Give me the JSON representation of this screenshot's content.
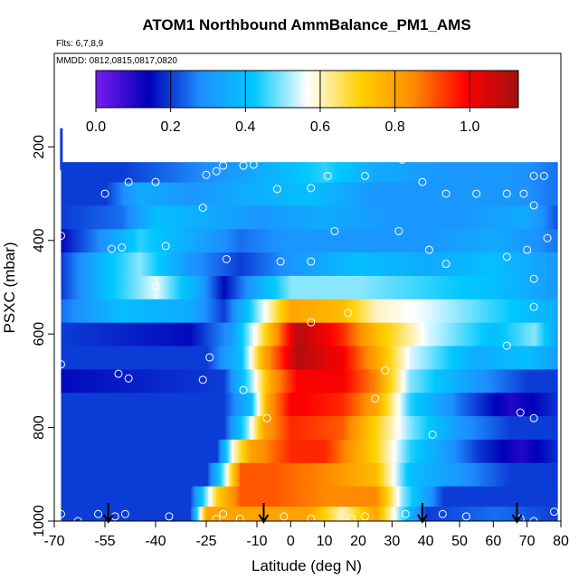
{
  "chart_data": {
    "type": "heatmap",
    "title": "ATOM1 Northbound AmmBalance_PM1_AMS",
    "flights_note": "Flts: 6,7,8,9",
    "dates_note": "MMDD: 0812,0815,0817,0820",
    "xlabel": "Latitude (deg N)",
    "ylabel": "PSXC (mbar)",
    "xlim": [
      -70,
      80
    ],
    "ylim": [
      1000,
      0
    ],
    "x_ticks": [
      -70,
      -55,
      -40,
      -25,
      -10,
      0,
      10,
      20,
      30,
      40,
      50,
      60,
      70,
      80
    ],
    "x_tick_labels": [
      "-70",
      "-55",
      "-40",
      "-25",
      "-10",
      "0",
      "10",
      "20",
      "30",
      "40",
      "50",
      "60",
      "70",
      "80"
    ],
    "y_ticks": [
      200,
      400,
      600,
      800,
      1000
    ],
    "y_tick_labels": [
      "200",
      "400",
      "600",
      "800",
      "1000"
    ],
    "colorbar": {
      "min": 0.0,
      "max": 1.13,
      "ticks": [
        0.0,
        0.2,
        0.4,
        0.6,
        0.8,
        1.0
      ],
      "tick_labels": [
        "0.0",
        "0.2",
        "0.4",
        "0.6",
        "0.8",
        "1.0"
      ],
      "colors": [
        "#7a1cf0",
        "#0000b8",
        "#1e90ff",
        "#00c8ff",
        "#ffffff",
        "#ffd000",
        "#ff8c00",
        "#ff0000",
        "#a01010"
      ]
    },
    "pressure_levels": [
      987,
      950,
      900,
      850,
      800,
      750,
      700,
      650,
      600,
      550,
      500,
      450,
      400,
      350,
      300,
      250
    ],
    "cells": [
      {
        "p": 987,
        "segments": [
          [
            -68,
            0.2
          ],
          [
            -30,
            0.2
          ],
          [
            -25,
            0.8
          ],
          [
            -10,
            0.8
          ],
          [
            5,
            0.8
          ],
          [
            15,
            0.6
          ],
          [
            25,
            0.8
          ],
          [
            32,
            0.5
          ],
          [
            40,
            0.2
          ],
          [
            60,
            0.25
          ],
          [
            80,
            0.2
          ]
        ]
      },
      {
        "p": 950,
        "segments": [
          [
            -68,
            0.2
          ],
          [
            -30,
            0.2
          ],
          [
            -22,
            0.7
          ],
          [
            -15,
            0.9
          ],
          [
            -5,
            0.9
          ],
          [
            10,
            0.85
          ],
          [
            25,
            0.85
          ],
          [
            33,
            0.5
          ],
          [
            45,
            0.2
          ],
          [
            80,
            0.2
          ]
        ]
      },
      {
        "p": 900,
        "segments": [
          [
            -68,
            0.2
          ],
          [
            -25,
            0.2
          ],
          [
            -20,
            0.5
          ],
          [
            -15,
            0.9
          ],
          [
            -5,
            0.9
          ],
          [
            10,
            0.85
          ],
          [
            25,
            0.75
          ],
          [
            35,
            0.4
          ],
          [
            50,
            0.3
          ],
          [
            65,
            0.2
          ],
          [
            80,
            0.2
          ]
        ]
      },
      {
        "p": 850,
        "segments": [
          [
            -68,
            0.2
          ],
          [
            -22,
            0.2
          ],
          [
            -17,
            0.6
          ],
          [
            -12,
            0.8
          ],
          [
            0,
            0.95
          ],
          [
            10,
            0.95
          ],
          [
            25,
            0.7
          ],
          [
            35,
            0.45
          ],
          [
            55,
            0.2
          ],
          [
            68,
            0.1
          ],
          [
            80,
            0.2
          ]
        ]
      },
      {
        "p": 800,
        "segments": [
          [
            -68,
            0.2
          ],
          [
            -20,
            0.2
          ],
          [
            -13,
            0.5
          ],
          [
            -8,
            0.8
          ],
          [
            0,
            0.95
          ],
          [
            15,
            0.9
          ],
          [
            25,
            0.7
          ],
          [
            35,
            0.5
          ],
          [
            50,
            0.3
          ],
          [
            65,
            0.2
          ],
          [
            80,
            0.2
          ]
        ]
      },
      {
        "p": 750,
        "segments": [
          [
            -68,
            0.2
          ],
          [
            -20,
            0.2
          ],
          [
            -12,
            0.4
          ],
          [
            -7,
            0.8
          ],
          [
            0,
            1.0
          ],
          [
            15,
            0.95
          ],
          [
            25,
            0.8
          ],
          [
            35,
            0.45
          ],
          [
            50,
            0.25
          ],
          [
            65,
            0.1
          ],
          [
            80,
            0.2
          ]
        ]
      },
      {
        "p": 700,
        "segments": [
          [
            -68,
            0.15
          ],
          [
            -20,
            0.2
          ],
          [
            -12,
            0.5
          ],
          [
            -6,
            0.8
          ],
          [
            2,
            1.0
          ],
          [
            15,
            1.0
          ],
          [
            25,
            0.85
          ],
          [
            35,
            0.5
          ],
          [
            55,
            0.3
          ],
          [
            70,
            0.2
          ],
          [
            80,
            0.2
          ]
        ]
      },
      {
        "p": 650,
        "segments": [
          [
            -68,
            0.2
          ],
          [
            -25,
            0.2
          ],
          [
            -15,
            0.4
          ],
          [
            -8,
            0.8
          ],
          [
            2,
            1.1
          ],
          [
            15,
            1.0
          ],
          [
            25,
            0.8
          ],
          [
            35,
            0.55
          ],
          [
            55,
            0.35
          ],
          [
            70,
            0.4
          ],
          [
            80,
            0.3
          ]
        ]
      },
      {
        "p": 600,
        "segments": [
          [
            -68,
            0.2
          ],
          [
            -30,
            0.15
          ],
          [
            -18,
            0.3
          ],
          [
            -10,
            0.6
          ],
          [
            2,
            1.1
          ],
          [
            15,
            0.95
          ],
          [
            25,
            0.75
          ],
          [
            40,
            0.55
          ],
          [
            60,
            0.4
          ],
          [
            72,
            0.5
          ],
          [
            80,
            0.3
          ]
        ]
      },
      {
        "p": 550,
        "segments": [
          [
            -68,
            0.25
          ],
          [
            -50,
            0.4
          ],
          [
            -30,
            0.35
          ],
          [
            -20,
            0.2
          ],
          [
            -10,
            0.5
          ],
          [
            0,
            0.8
          ],
          [
            15,
            0.75
          ],
          [
            25,
            0.6
          ],
          [
            40,
            0.55
          ],
          [
            60,
            0.45
          ],
          [
            80,
            0.35
          ]
        ]
      },
      {
        "p": 500,
        "segments": [
          [
            -68,
            0.2
          ],
          [
            -55,
            0.4
          ],
          [
            -40,
            0.55
          ],
          [
            -28,
            0.35
          ],
          [
            -20,
            0.15
          ],
          [
            -10,
            0.35
          ],
          [
            0,
            0.5
          ],
          [
            20,
            0.5
          ],
          [
            40,
            0.45
          ],
          [
            60,
            0.4
          ],
          [
            80,
            0.3
          ]
        ]
      },
      {
        "p": 450,
        "segments": [
          [
            -68,
            0.2
          ],
          [
            -55,
            0.4
          ],
          [
            -45,
            0.5
          ],
          [
            -30,
            0.3
          ],
          [
            -15,
            0.2
          ],
          [
            0,
            0.3
          ],
          [
            20,
            0.4
          ],
          [
            40,
            0.35
          ],
          [
            60,
            0.4
          ],
          [
            80,
            0.3
          ]
        ]
      },
      {
        "p": 400,
        "segments": [
          [
            -68,
            0.15
          ],
          [
            -55,
            0.3
          ],
          [
            -45,
            0.45
          ],
          [
            -30,
            0.35
          ],
          [
            -15,
            0.25
          ],
          [
            0,
            0.3
          ],
          [
            20,
            0.3
          ],
          [
            40,
            0.3
          ],
          [
            60,
            0.35
          ],
          [
            80,
            0.25
          ]
        ]
      },
      {
        "p": 350,
        "segments": [
          [
            -68,
            0.2
          ],
          [
            -50,
            0.25
          ],
          [
            -40,
            0.4
          ],
          [
            -25,
            0.35
          ],
          [
            -10,
            0.3
          ],
          [
            10,
            0.35
          ],
          [
            30,
            0.3
          ],
          [
            50,
            0.3
          ],
          [
            70,
            0.35
          ],
          [
            80,
            0.2
          ]
        ]
      },
      {
        "p": 300,
        "segments": [
          [
            -68,
            0.2
          ],
          [
            -55,
            0.2
          ],
          [
            -45,
            0.35
          ],
          [
            -30,
            0.3
          ],
          [
            -15,
            0.35
          ],
          [
            5,
            0.4
          ],
          [
            25,
            0.3
          ],
          [
            45,
            0.3
          ],
          [
            65,
            0.3
          ],
          [
            80,
            0.25
          ]
        ]
      },
      {
        "p": 250,
        "segments": [
          [
            -68,
            0.2
          ],
          [
            -50,
            0.2
          ],
          [
            -35,
            0.25
          ],
          [
            -20,
            0.3
          ],
          [
            0,
            0.4
          ],
          [
            10,
            0.45
          ],
          [
            25,
            0.35
          ],
          [
            45,
            0.3
          ],
          [
            65,
            0.3
          ],
          [
            80,
            0.25
          ]
        ]
      }
    ],
    "points": [
      [
        -68,
        985
      ],
      [
        -63,
        1000
      ],
      [
        -57,
        985
      ],
      [
        -52,
        990
      ],
      [
        -49,
        985
      ],
      [
        -36,
        990
      ],
      [
        -22,
        995
      ],
      [
        -20,
        985
      ],
      [
        -15,
        995
      ],
      [
        -2,
        990
      ],
      [
        6,
        995
      ],
      [
        18,
        995
      ],
      [
        22,
        990
      ],
      [
        34,
        985
      ],
      [
        45,
        985
      ],
      [
        52,
        990
      ],
      [
        68,
        995
      ],
      [
        72,
        1000
      ],
      [
        78,
        980
      ],
      [
        -68,
        665
      ],
      [
        -51,
        685
      ],
      [
        -48,
        695
      ],
      [
        -26,
        698
      ],
      [
        -14,
        720
      ],
      [
        -7,
        780
      ],
      [
        6,
        575
      ],
      [
        17,
        555
      ],
      [
        25,
        738
      ],
      [
        28,
        678
      ],
      [
        42,
        815
      ],
      [
        64,
        625
      ],
      [
        68,
        768
      ],
      [
        72,
        780
      ],
      [
        -40,
        498
      ],
      [
        -24,
        650
      ],
      [
        -19,
        440
      ],
      [
        -3,
        445
      ],
      [
        6,
        445
      ],
      [
        13,
        380
      ],
      [
        32,
        380
      ],
      [
        41,
        420
      ],
      [
        46,
        450
      ],
      [
        64,
        435
      ],
      [
        70,
        420
      ],
      [
        72,
        482
      ],
      [
        72,
        542
      ],
      [
        76,
        395
      ],
      [
        -68,
        390
      ],
      [
        -53,
        418
      ],
      [
        -50,
        415
      ],
      [
        -37,
        412
      ],
      [
        -26,
        330
      ],
      [
        -22,
        252
      ],
      [
        -25,
        260
      ],
      [
        -20,
        240
      ],
      [
        -14,
        240
      ],
      [
        -11,
        238
      ],
      [
        -4,
        290
      ],
      [
        6,
        288
      ],
      [
        11,
        262
      ],
      [
        22,
        262
      ],
      [
        33,
        227
      ],
      [
        39,
        275
      ],
      [
        46,
        300
      ],
      [
        55,
        300
      ],
      [
        64,
        300
      ],
      [
        69,
        300
      ],
      [
        72,
        325
      ],
      [
        72,
        262
      ],
      [
        75,
        262
      ],
      [
        70,
        218
      ],
      [
        -55,
        300
      ],
      [
        -48,
        275
      ],
      [
        -40,
        275
      ]
    ],
    "arrows": [
      -54,
      -8,
      39,
      67
    ]
  }
}
